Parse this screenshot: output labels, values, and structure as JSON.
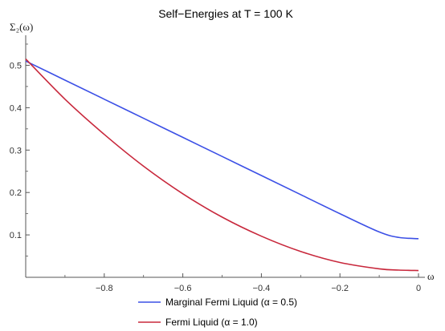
{
  "chart_data": {
    "type": "line",
    "title": "Self−Energies at T = 100 K",
    "xlabel": "ω",
    "ylabel": "Σ₂(ω)",
    "xlim": [
      -1.0,
      0.0
    ],
    "ylim": [
      0.0,
      0.55
    ],
    "xticks": [
      -0.8,
      -0.6,
      -0.4,
      -0.2,
      0
    ],
    "xtick_labels": [
      "−0.8",
      "−0.6",
      "−0.4",
      "−0.2",
      "0"
    ],
    "yticks": [
      0.1,
      0.2,
      0.3,
      0.4,
      0.5
    ],
    "ytick_labels": [
      "0.1",
      "0.2",
      "0.3",
      "0.4",
      "0.5"
    ],
    "grid": false,
    "legend_position": "bottom",
    "series": [
      {
        "name": "Marginal Fermi Liquid (α = 0.5)",
        "color": "#3c50e6",
        "x": [
          -1.0,
          -0.9,
          -0.8,
          -0.7,
          -0.6,
          -0.5,
          -0.4,
          -0.3,
          -0.2,
          -0.1,
          -0.05,
          0.0
        ],
        "y": [
          0.51,
          0.465,
          0.42,
          0.375,
          0.33,
          0.285,
          0.24,
          0.195,
          0.15,
          0.107,
          0.094,
          0.091
        ]
      },
      {
        "name": "Fermi Liquid (α = 1.0)",
        "color": "#c8283c",
        "x": [
          -1.0,
          -0.9,
          -0.8,
          -0.7,
          -0.6,
          -0.5,
          -0.4,
          -0.3,
          -0.2,
          -0.1,
          -0.05,
          0.0
        ],
        "y": [
          0.515,
          0.42,
          0.337,
          0.262,
          0.197,
          0.142,
          0.097,
          0.061,
          0.035,
          0.02,
          0.017,
          0.016
        ]
      }
    ]
  }
}
